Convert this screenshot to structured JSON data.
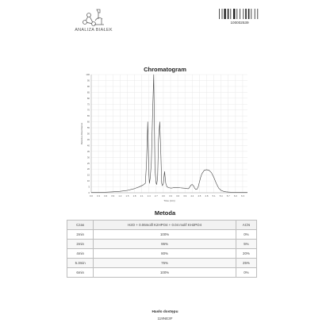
{
  "header": {
    "logo_text": "ANALIZA BIAŁEK",
    "barcode_number": "100002539"
  },
  "chromatogram": {
    "title": "Chromatogram",
    "y_label": "Relative Absorbance",
    "x_label": "Time (min)"
  },
  "chart_data": {
    "type": "line",
    "title": "Chromatogram",
    "xlabel": "Time (min)",
    "ylabel": "Relative Absorbance",
    "xlim": [
      0,
      6.5
    ],
    "ylim": [
      0,
      100
    ],
    "x_ticks": [
      "0.0",
      "0.3",
      "0.6",
      "0.9",
      "1.2",
      "1.5",
      "1.8",
      "2.1",
      "2.4",
      "2.7",
      "3.0",
      "3.3",
      "3.6",
      "3.9",
      "4.2",
      "4.5",
      "4.8",
      "5.1",
      "5.4",
      "5.7",
      "6.0",
      "6.3"
    ],
    "y_ticks": [
      "0",
      "5",
      "10",
      "15",
      "20",
      "25",
      "30",
      "35",
      "40",
      "45",
      "50",
      "55",
      "60",
      "65",
      "70",
      "75",
      "80",
      "85",
      "90",
      "95",
      "100"
    ],
    "grid": true,
    "series": [
      {
        "x": [
          0.0,
          0.3,
          0.6,
          0.9,
          1.2,
          1.5,
          1.8,
          2.0,
          2.15,
          2.25,
          2.3,
          2.35,
          2.4,
          2.42,
          2.45,
          2.5,
          2.55,
          2.6,
          2.62,
          2.65,
          2.7,
          2.72,
          2.76,
          2.8,
          2.85,
          2.9,
          2.93,
          2.96,
          3.0,
          3.05,
          3.1,
          3.15,
          3.2,
          3.25,
          3.3,
          3.35,
          3.4,
          3.45,
          3.5,
          3.6,
          3.7,
          3.8,
          3.9,
          4.0,
          4.05,
          4.1,
          4.15,
          4.2,
          4.25,
          4.3,
          4.35,
          4.4,
          4.45,
          4.5,
          4.55,
          4.6,
          4.7,
          4.8,
          4.9,
          5.0,
          5.1,
          5.2,
          5.3,
          5.4,
          5.5,
          5.6,
          5.7,
          5.8,
          5.9,
          6.0,
          6.1,
          6.2,
          6.3,
          6.5
        ],
        "values": [
          0.5,
          0.5,
          0.5,
          0.8,
          1.2,
          2.0,
          3.5,
          5,
          6.5,
          8,
          25,
          60,
          15,
          8,
          12,
          25,
          65,
          100,
          70,
          20,
          8,
          7,
          12,
          45,
          60,
          30,
          8,
          6,
          8,
          18,
          8,
          5,
          4.5,
          4.2,
          4.0,
          4.0,
          4.2,
          4.5,
          4.5,
          4.5,
          4.2,
          4.0,
          3.8,
          3.5,
          3.5,
          5,
          6.5,
          7,
          6,
          4,
          2.8,
          3,
          5,
          9,
          13,
          16,
          19,
          19.5,
          19,
          17,
          13,
          8,
          4,
          2,
          1.2,
          0.8,
          0.6,
          0.5,
          0.5,
          0.5,
          0.5,
          0.5,
          0.5,
          0.5
        ]
      }
    ]
  },
  "gradient": {
    "title": "Metoda",
    "headers": [
      "Czas",
      "H2O + 0.06mol/l K2HPO4 + 0.04 mol/l KH2PO4",
      "ACN"
    ],
    "rows": [
      [
        "2min",
        "100%",
        "0%"
      ],
      [
        "2min",
        "95%",
        "5%"
      ],
      [
        "4min",
        "80%",
        "20%"
      ],
      [
        "5.3min",
        "75%",
        "25%"
      ],
      [
        "6min",
        "100%",
        "0%"
      ]
    ]
  },
  "footer": {
    "password_label": "Hasło dostępu",
    "password_value": "119NE3F"
  }
}
